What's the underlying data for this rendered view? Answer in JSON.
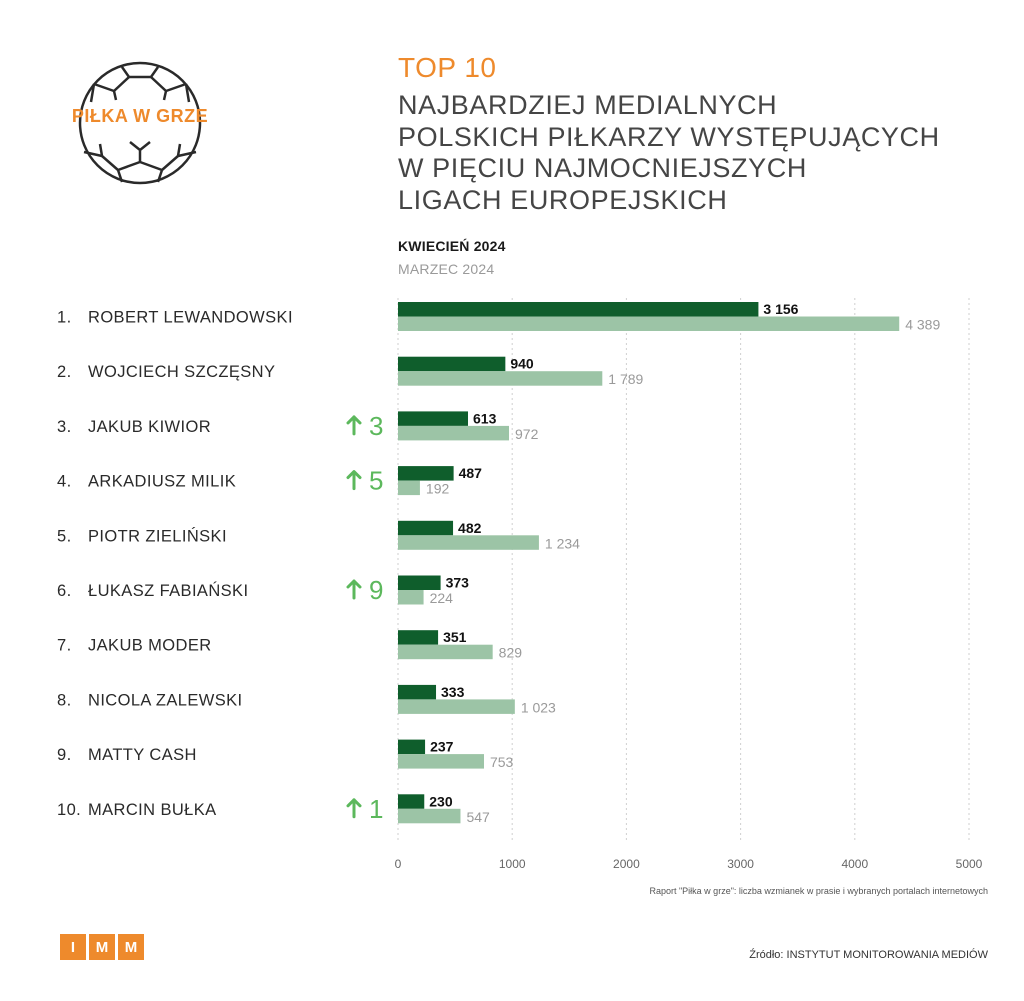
{
  "logo": {
    "text": "PIŁKA W GRZE",
    "icon": "football-icon",
    "color": "#ee8a2c"
  },
  "header": {
    "top": "TOP 10",
    "title_lines": [
      "NAJBARDZIEJ MEDIALNYCH",
      "POLSKICH PIŁKARZY WYSTĘPUJĄCYCH",
      "W PIĘCIU NAJMOCNIEJSZYCH",
      "LIGACH EUROPEJSKICH"
    ]
  },
  "legend": {
    "current": "KWIECIEŃ 2024",
    "previous": "MARZEC 2024"
  },
  "chart_data": {
    "type": "bar",
    "orientation": "horizontal",
    "categories": [
      "ROBERT LEWANDOWSKI",
      "WOJCIECH SZCZĘSNY",
      "JAKUB KIWIOR",
      "ARKADIUSZ MILIK",
      "PIOTR ZIELIŃSKI",
      "ŁUKASZ FABIAŃSKI",
      "JAKUB MODER",
      "NICOLA ZALEWSKI",
      "MATTY CASH",
      "MARCIN BUŁKA"
    ],
    "ranks": [
      "1.",
      "2.",
      "3.",
      "4.",
      "5.",
      "6.",
      "7.",
      "8.",
      "9.",
      "10."
    ],
    "series": [
      {
        "name": "KWIECIEŃ 2024",
        "color": "#0f5e2c",
        "values": [
          3156,
          940,
          613,
          487,
          482,
          373,
          351,
          333,
          237,
          230
        ],
        "labels": [
          "3 156",
          "940",
          "613",
          "487",
          "482",
          "373",
          "351",
          "333",
          "237",
          "230"
        ]
      },
      {
        "name": "MARZEC 2024",
        "color": "#9cc4a6",
        "values": [
          4389,
          1789,
          972,
          192,
          1234,
          224,
          829,
          1023,
          753,
          547
        ],
        "labels": [
          "4 389",
          "1 789",
          "972",
          "192",
          "1 234",
          "224",
          "829",
          "1 023",
          "753",
          "547"
        ]
      }
    ],
    "rank_change": [
      "",
      "",
      "3",
      "5",
      "",
      "9",
      "",
      "",
      "",
      "1"
    ],
    "rank_change_icon": "arrow-up-icon",
    "rank_change_color": "#5cb85c",
    "xlim": [
      0,
      5000
    ],
    "xticks": [
      0,
      1000,
      2000,
      3000,
      4000,
      5000
    ],
    "xtick_labels": [
      "0",
      "1000",
      "2000",
      "3000",
      "4000",
      "5000"
    ],
    "grid": "vertical dotted"
  },
  "footer": {
    "note": "Raport \"Piłka w grze\": liczba wzmianek w prasie i wybranych portalach internetowych",
    "brand_letters": [
      "I",
      "M",
      "M"
    ],
    "brand_color": "#ee8a2c",
    "source": "Źródło: INSTYTUT MONITOROWANIA MEDIÓW"
  }
}
